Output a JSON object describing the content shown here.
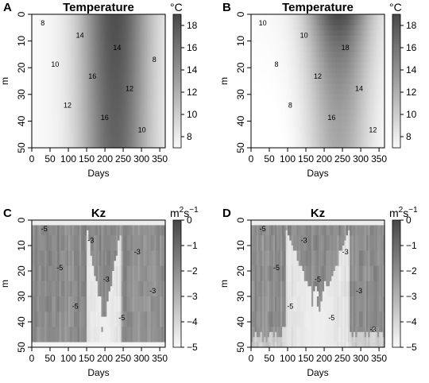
{
  "chart_data": [
    {
      "panel": "A",
      "type": "heatmap",
      "title": "Temperature",
      "xlabel": "Days",
      "ylabel": "m",
      "xlim": [
        0,
        365
      ],
      "ylim": [
        50,
        0
      ],
      "xticks": [
        "0",
        "50",
        "100",
        "150",
        "200",
        "250",
        "300",
        "350"
      ],
      "yticks": [
        "0",
        "10",
        "20",
        "30",
        "40",
        "50"
      ],
      "colorbar": {
        "unit_prefix": "°",
        "unit_main": "C",
        "unit_sup": "",
        "range": [
          7,
          19
        ],
        "ticks": [
          "18",
          "16",
          "14",
          "12",
          "10",
          "8"
        ]
      },
      "contour_labels": [
        "8",
        "10",
        "12",
        "14",
        "16",
        "16",
        "14",
        "12",
        "10",
        "8"
      ],
      "gray_range": [
        0.98,
        0.28
      ],
      "field": {
        "model": "temperature_mixed",
        "t_min": 7,
        "t_max": 18.5,
        "t_peak_day": 228,
        "warm_halfwidth_days": 105,
        "stratification": 1.5
      }
    },
    {
      "panel": "B",
      "type": "heatmap",
      "title": "Temperature",
      "xlabel": "Days",
      "ylabel": "m",
      "xlim": [
        0,
        365
      ],
      "ylim": [
        50,
        0
      ],
      "xticks": [
        "0",
        "50",
        "100",
        "150",
        "200",
        "250",
        "300",
        "350"
      ],
      "yticks": [
        "0",
        "10",
        "20",
        "30",
        "40",
        "50"
      ],
      "colorbar": {
        "unit_prefix": "°",
        "unit_main": "C",
        "unit_sup": "",
        "range": [
          7,
          19
        ],
        "ticks": [
          "18",
          "16",
          "14",
          "12",
          "10",
          "8"
        ]
      },
      "contour_labels": [
        "10",
        "8",
        "8",
        "10",
        "12",
        "16",
        "18",
        "14",
        "12"
      ],
      "gray_range": [
        0.98,
        0.28
      ],
      "field": {
        "model": "temperature_stratified",
        "t_min": 7,
        "t_max": 19,
        "t_peak_day": 240,
        "warm_halfwidth_days": 95,
        "stratification": 6.5
      }
    },
    {
      "panel": "C",
      "type": "heatmap",
      "title": "Kz",
      "xlabel": "Days",
      "ylabel": "m",
      "xlim": [
        0,
        365
      ],
      "ylim": [
        50,
        0
      ],
      "xticks": [
        "0",
        "50",
        "100",
        "150",
        "200",
        "250",
        "300",
        "350"
      ],
      "yticks": [
        "0",
        "10",
        "20",
        "30",
        "40",
        "50"
      ],
      "colorbar": {
        "unit_prefix": "",
        "unit_main": "m",
        "unit_sup": "2",
        "unit_rest": "s",
        "unit_sup2": "−1",
        "range": [
          -5,
          0
        ],
        "ticks": [
          "0",
          "−1",
          "−2",
          "−3",
          "−4",
          "−5"
        ]
      },
      "contour_labels": [
        "-5",
        "-5",
        "-5",
        "-3",
        "-3",
        "-5",
        "-3",
        "-3"
      ],
      "gray_range": [
        0.98,
        0.28
      ],
      "field": {
        "model": "kz_mixed",
        "log_min": -5,
        "log_max": -1,
        "quiet_start_day": 150,
        "quiet_end_day": 245,
        "quiet_depth_m": 49
      }
    },
    {
      "panel": "D",
      "type": "heatmap",
      "title": "Kz",
      "xlabel": "Days",
      "ylabel": "m",
      "xlim": [
        0,
        365
      ],
      "ylim": [
        50,
        0
      ],
      "xticks": [
        "0",
        "50",
        "100",
        "150",
        "200",
        "250",
        "300",
        "350"
      ],
      "yticks": [
        "0",
        "10",
        "20",
        "30",
        "40",
        "50"
      ],
      "colorbar": {
        "unit_prefix": "",
        "unit_main": "m",
        "unit_sup": "2",
        "unit_rest": "s",
        "unit_sup2": "−1",
        "range": [
          -5,
          0
        ],
        "ticks": [
          "0",
          "−1",
          "−2",
          "−3",
          "−4",
          "−5"
        ]
      },
      "contour_labels": [
        "-5",
        "-5",
        "-5",
        "-3",
        "-5",
        "-5",
        "-3",
        "-3",
        "-3"
      ],
      "gray_range": [
        0.98,
        0.28
      ],
      "field": {
        "model": "kz_stratified",
        "log_min": -5,
        "log_max": -1,
        "quiet_start_day": 95,
        "quiet_end_day": 270,
        "quiet_depth_m": 40
      }
    }
  ]
}
